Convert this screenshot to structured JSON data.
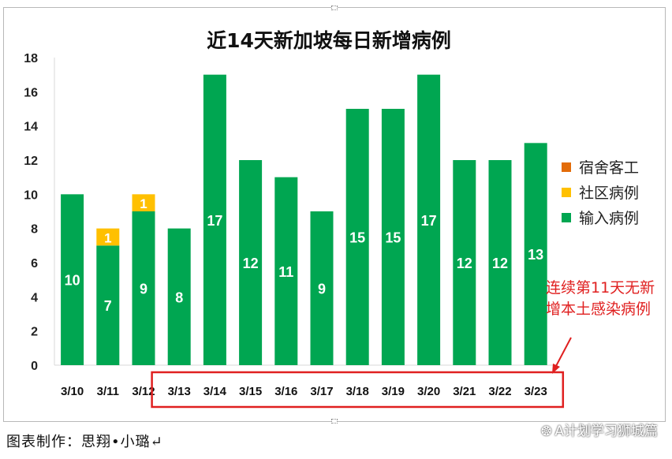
{
  "chart_data": {
    "type": "bar",
    "stacked": true,
    "title": "近14天新加坡每日新增病例",
    "categories": [
      "3/10",
      "3/11",
      "3/12",
      "3/13",
      "3/14",
      "3/15",
      "3/16",
      "3/17",
      "3/18",
      "3/19",
      "3/20",
      "3/21",
      "3/22",
      "3/23"
    ],
    "series": [
      {
        "name": "输入病例",
        "color": "#00a651",
        "values": [
          10,
          7,
          9,
          8,
          17,
          12,
          11,
          9,
          15,
          15,
          17,
          12,
          12,
          13
        ]
      },
      {
        "name": "社区病例",
        "color": "#ffc000",
        "values": [
          0,
          1,
          1,
          0,
          0,
          0,
          0,
          0,
          0,
          0,
          0,
          0,
          0,
          0
        ]
      },
      {
        "name": "宿舍客工",
        "color": "#e36c09",
        "values": [
          0,
          0,
          0,
          0,
          0,
          0,
          0,
          0,
          0,
          0,
          0,
          0,
          0,
          0
        ]
      }
    ],
    "ylim": [
      0,
      18
    ],
    "yticks": [
      0,
      2,
      4,
      6,
      8,
      10,
      12,
      14,
      16,
      18
    ],
    "legend_position": "right",
    "annotation": {
      "lines": [
        "连续第11天无新",
        "增本土感染病例"
      ],
      "color": "#e02020",
      "highlight_range": [
        "3/13",
        "3/23"
      ]
    }
  },
  "footer": {
    "credit": "图表制作：思翔•小璐↵",
    "watermark": "A计划学习狮城篇",
    "watermark_icon": "wechat-icon"
  }
}
